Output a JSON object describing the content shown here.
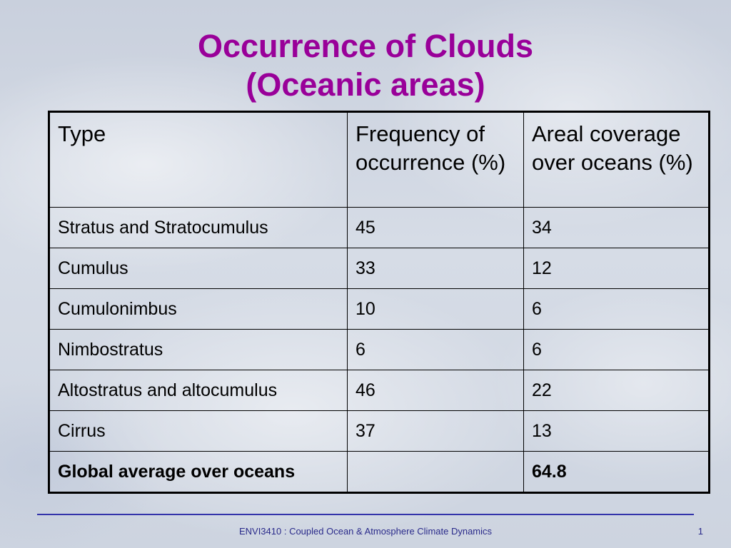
{
  "slide": {
    "title_line1": "Occurrence of Clouds",
    "title_line2": "(Oceanic areas)",
    "title_color": "#990099"
  },
  "table": {
    "headers": [
      "Type",
      "Frequency of occurrence (%)",
      "Areal coverage over oceans (%)"
    ],
    "rows": [
      [
        "Stratus and Stratocumulus",
        "45",
        "34"
      ],
      [
        "Cumulus",
        "33",
        "12"
      ],
      [
        "Cumulonimbus",
        "10",
        "6"
      ],
      [
        "Nimbostratus",
        "6",
        "6"
      ],
      [
        "Altostratus and altocumulus",
        "46",
        "22"
      ],
      [
        "Cirrus",
        "37",
        "13"
      ]
    ],
    "total_row": [
      "Global average over oceans",
      "",
      "64.8"
    ]
  },
  "footer": {
    "text": "ENVI3410 : Coupled Ocean & Atmosphere Climate Dynamics",
    "slide_number": "1",
    "line_color": "#3333aa"
  }
}
